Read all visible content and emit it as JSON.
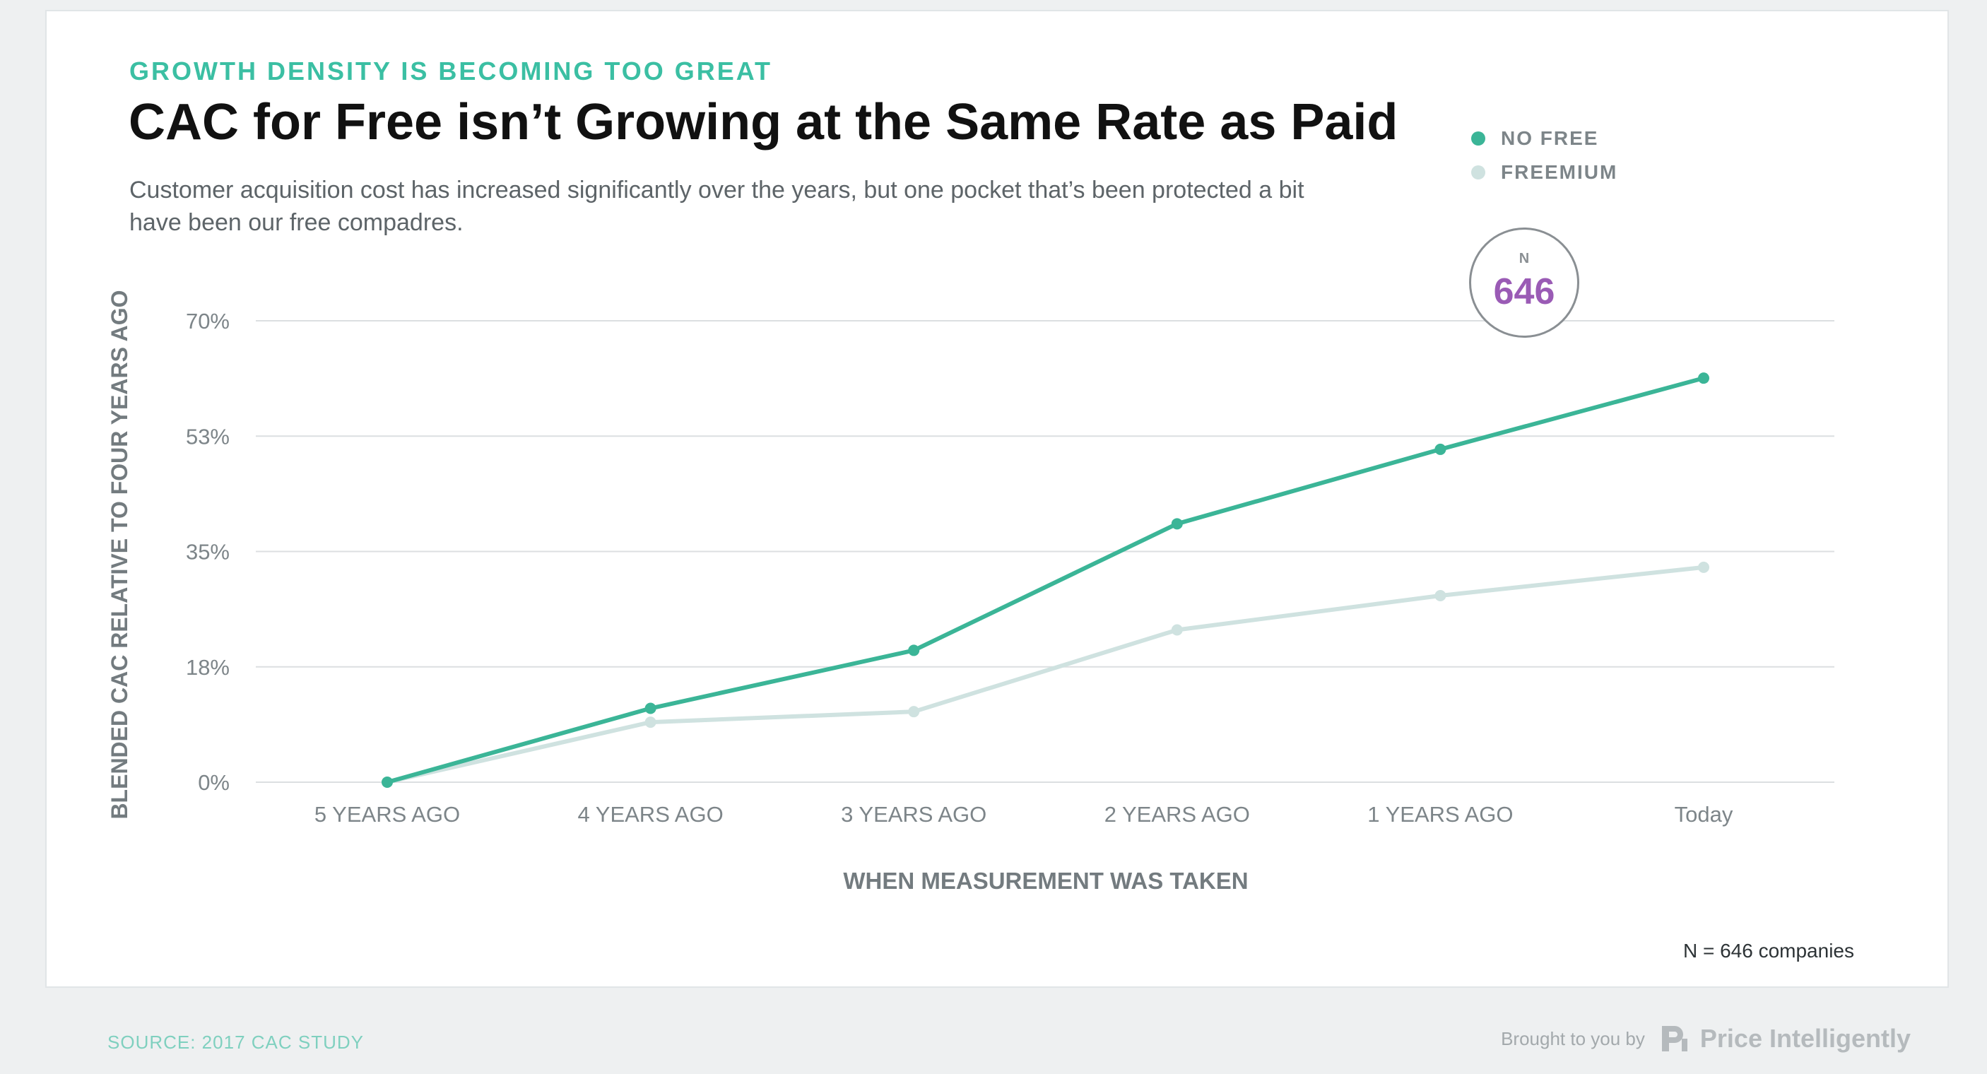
{
  "header": {
    "eyebrow": "GROWTH DENSITY IS BECOMING TOO GREAT",
    "title": "CAC for Free isn’t Growing at the Same Rate as Paid",
    "subtitle": "Customer acquisition cost has increased significantly over the years, but one pocket that’s been protected a bit have been our free compadres."
  },
  "legend": {
    "items": [
      {
        "label": "NO FREE",
        "color": "#3bb597"
      },
      {
        "label": "FREEMIUM",
        "color": "#cfe2e0"
      }
    ]
  },
  "badge": {
    "label": "N",
    "value": "646"
  },
  "chart_data": {
    "type": "line",
    "title": "CAC for Free isn’t Growing at the Same Rate as Paid",
    "xlabel": "WHEN MEASUREMENT WAS TAKEN",
    "ylabel": "BLENDED CAC RELATIVE TO FOUR YEARS AGO",
    "categories": [
      "5 YEARS AGO",
      "4 YEARS AGO",
      "3 YEARS AGO",
      "2 YEARS AGO",
      "1 YEARS AGO",
      "Today"
    ],
    "y_ticks": [
      0,
      17.5,
      35,
      52.5,
      70
    ],
    "y_tick_labels": [
      "0%",
      "18%",
      "35%",
      "53%",
      "70%"
    ],
    "ylim": [
      0,
      70
    ],
    "grid": true,
    "series": [
      {
        "name": "NO FREE",
        "color": "#3bb597",
        "values": [
          0,
          11.2,
          20,
          39.2,
          50.5,
          61.3
        ]
      },
      {
        "name": "FREEMIUM",
        "color": "#cfe2e0",
        "values": [
          0,
          9.1,
          10.7,
          23.1,
          28.3,
          32.6
        ]
      }
    ]
  },
  "footer": {
    "note": "N = 646 companies",
    "source": "SOURCE: 2017 CAC STUDY",
    "brand_prefix": "Brought to you by",
    "brand_name": "Price Intelligently"
  }
}
